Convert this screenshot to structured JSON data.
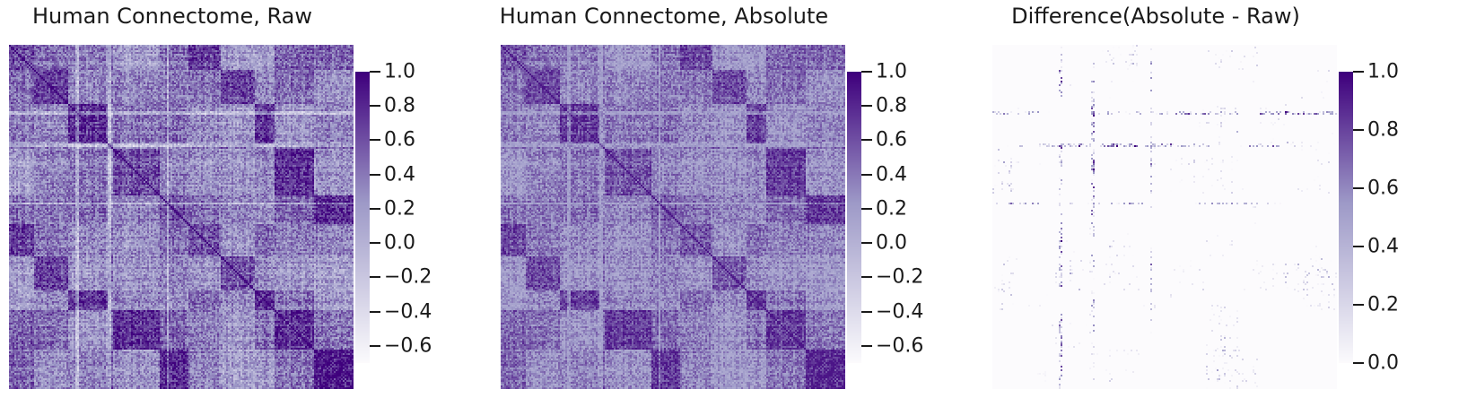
{
  "chart_data": [
    {
      "type": "heatmap",
      "title": "Human Connectome, Raw",
      "colorbar": {
        "min": -0.7,
        "max": 1.0,
        "ticks": [
          "1.0",
          "0.8",
          "0.6",
          "0.4",
          "0.2",
          "0.0",
          "−0.2",
          "−0.4",
          "−0.6"
        ],
        "tick_values": [
          1.0,
          0.8,
          0.6,
          0.4,
          0.2,
          0.0,
          -0.2,
          -0.4,
          -0.6
        ]
      },
      "colormap": "Purples",
      "pattern": "raw"
    },
    {
      "type": "heatmap",
      "title": "Human Connectome, Absolute",
      "colorbar": {
        "min": -0.7,
        "max": 1.0,
        "ticks": [
          "1.0",
          "0.8",
          "0.6",
          "0.4",
          "0.2",
          "0.0",
          "−0.2",
          "−0.4",
          "−0.6"
        ],
        "tick_values": [
          1.0,
          0.8,
          0.6,
          0.4,
          0.2,
          0.0,
          -0.2,
          -0.4,
          -0.6
        ]
      },
      "colormap": "Purples",
      "pattern": "absolute"
    },
    {
      "type": "heatmap",
      "title": "Difference(Absolute - Raw)",
      "colorbar": {
        "min": 0.0,
        "max": 1.0,
        "ticks": [
          "1.0",
          "0.8",
          "0.6",
          "0.4",
          "0.2",
          "0.0"
        ],
        "tick_values": [
          1.0,
          0.8,
          0.6,
          0.4,
          0.2,
          0.0
        ]
      },
      "colormap": "Purples",
      "pattern": "difference"
    }
  ],
  "colors": {
    "cmap_low": "#fcfbfd",
    "cmap_mid": "#9e9ac8",
    "cmap_high": "#3f007d"
  }
}
